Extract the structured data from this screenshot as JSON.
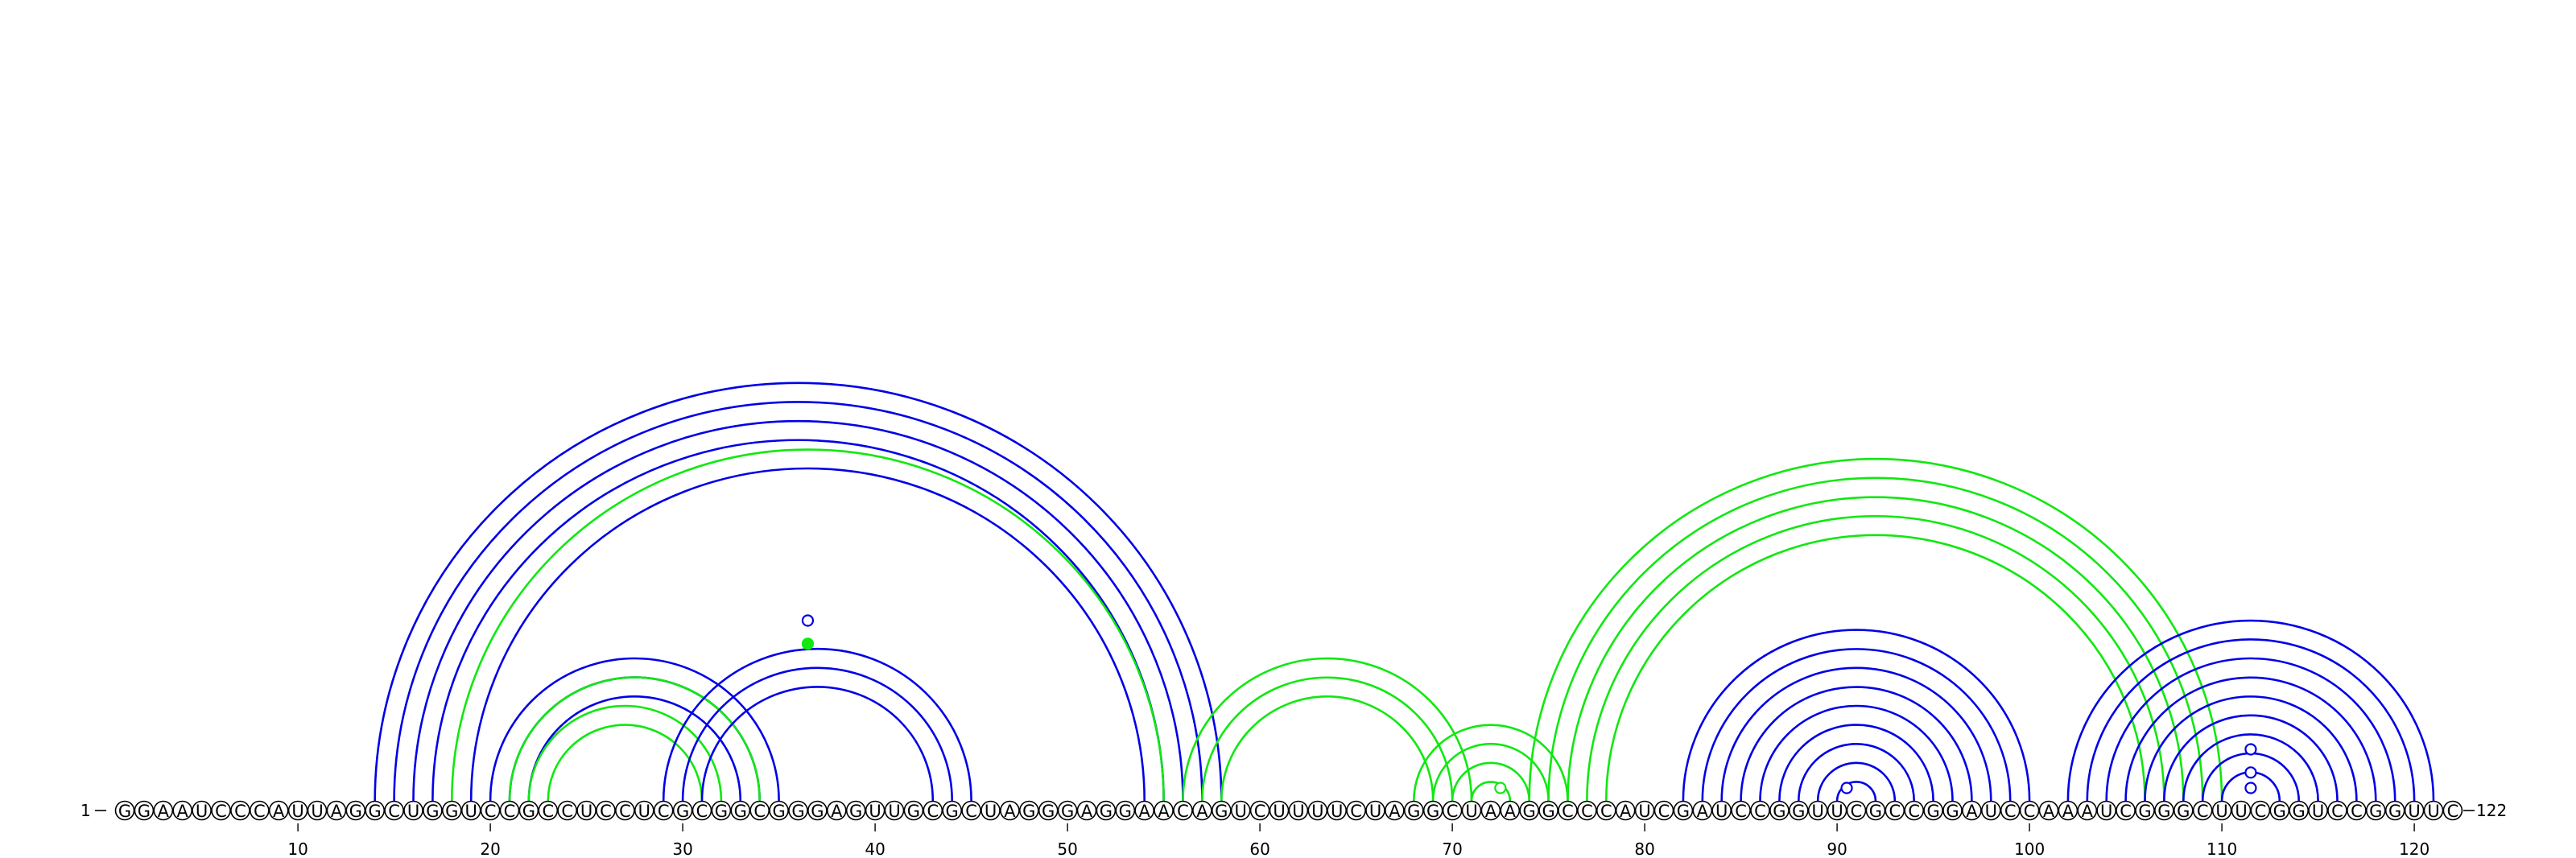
{
  "sequence": "GGAAUCCCAUUAGGCUGGUCCGCCUCCUCGCGGCGGGAGUUGCGCUAGGGAGGAACAGUCUUUUCUAGGCUAAGGCCCAUCGAUCCGGUUCGCCGGAUCCAAAUCGGGCUUCGGUCCGGUUC",
  "start_label": "1",
  "end_label": "122",
  "ticks": [
    {
      "pos": 10,
      "label": "10"
    },
    {
      "pos": 20,
      "label": "20"
    },
    {
      "pos": 30,
      "label": "30"
    },
    {
      "pos": 40,
      "label": "40"
    },
    {
      "pos": 50,
      "label": "50"
    },
    {
      "pos": 60,
      "label": "60"
    },
    {
      "pos": 70,
      "label": "70"
    },
    {
      "pos": 80,
      "label": "80"
    },
    {
      "pos": 90,
      "label": "90"
    },
    {
      "pos": 100,
      "label": "100"
    },
    {
      "pos": 110,
      "label": "110"
    },
    {
      "pos": 120,
      "label": "120"
    }
  ],
  "colors": {
    "blue": "#0000e6",
    "green": "#10e810",
    "backbone": "#000000"
  },
  "arcs": [
    {
      "i": 14,
      "j": 58,
      "color": "blue"
    },
    {
      "i": 15,
      "j": 57,
      "color": "blue"
    },
    {
      "i": 16,
      "j": 56,
      "color": "blue"
    },
    {
      "i": 17,
      "j": 55,
      "color": "blue"
    },
    {
      "i": 18,
      "j": 55,
      "color": "green"
    },
    {
      "i": 19,
      "j": 54,
      "color": "blue"
    },
    {
      "i": 20,
      "j": 35,
      "color": "blue"
    },
    {
      "i": 21,
      "j": 34,
      "color": "blue"
    },
    {
      "i": 22,
      "j": 33,
      "color": "blue"
    },
    {
      "i": 21,
      "j": 34,
      "color": "green"
    },
    {
      "i": 22,
      "j": 32,
      "color": "green"
    },
    {
      "i": 23,
      "j": 31,
      "color": "green"
    },
    {
      "i": 29,
      "j": 45,
      "color": "blue"
    },
    {
      "i": 30,
      "j": 44,
      "color": "blue"
    },
    {
      "i": 31,
      "j": 43,
      "color": "blue"
    },
    {
      "i": 56,
      "j": 71,
      "color": "green"
    },
    {
      "i": 57,
      "j": 70,
      "color": "green"
    },
    {
      "i": 58,
      "j": 69,
      "color": "green"
    },
    {
      "i": 68,
      "j": 76,
      "color": "green"
    },
    {
      "i": 69,
      "j": 75,
      "color": "green"
    },
    {
      "i": 70,
      "j": 74,
      "color": "green"
    },
    {
      "i": 71,
      "j": 73,
      "color": "green"
    },
    {
      "i": 74,
      "j": 110,
      "color": "green"
    },
    {
      "i": 75,
      "j": 109,
      "color": "green"
    },
    {
      "i": 76,
      "j": 108,
      "color": "green"
    },
    {
      "i": 77,
      "j": 107,
      "color": "green"
    },
    {
      "i": 78,
      "j": 106,
      "color": "green"
    },
    {
      "i": 82,
      "j": 100,
      "color": "blue"
    },
    {
      "i": 83,
      "j": 99,
      "color": "blue"
    },
    {
      "i": 84,
      "j": 98,
      "color": "blue"
    },
    {
      "i": 85,
      "j": 97,
      "color": "blue"
    },
    {
      "i": 86,
      "j": 96,
      "color": "blue"
    },
    {
      "i": 87,
      "j": 95,
      "color": "blue"
    },
    {
      "i": 88,
      "j": 94,
      "color": "blue"
    },
    {
      "i": 89,
      "j": 93,
      "color": "blue"
    },
    {
      "i": 90,
      "j": 92,
      "color": "blue"
    },
    {
      "i": 102,
      "j": 121,
      "color": "blue"
    },
    {
      "i": 103,
      "j": 120,
      "color": "blue"
    },
    {
      "i": 104,
      "j": 119,
      "color": "blue"
    },
    {
      "i": 105,
      "j": 118,
      "color": "blue"
    },
    {
      "i": 106,
      "j": 117,
      "color": "blue"
    },
    {
      "i": 107,
      "j": 116,
      "color": "blue"
    },
    {
      "i": 108,
      "j": 115,
      "color": "blue"
    },
    {
      "i": 109,
      "j": 114,
      "color": "blue"
    },
    {
      "i": 110,
      "j": 113,
      "color": "blue"
    }
  ],
  "markers": [
    {
      "center": 36.5,
      "level": 14,
      "color": "blue",
      "filled": false
    },
    {
      "center": 36.5,
      "level": 12.2,
      "color": "green",
      "filled": true
    },
    {
      "center": 72.5,
      "level": 1,
      "color": "green",
      "filled": false
    },
    {
      "center": 90.5,
      "level": 1,
      "color": "blue",
      "filled": false
    },
    {
      "center": 111.5,
      "level": 1,
      "color": "blue",
      "filled": false
    },
    {
      "center": 111.5,
      "level": 2.2,
      "color": "blue",
      "filled": false
    },
    {
      "center": 111.5,
      "level": 4,
      "color": "blue",
      "filled": false
    }
  ]
}
